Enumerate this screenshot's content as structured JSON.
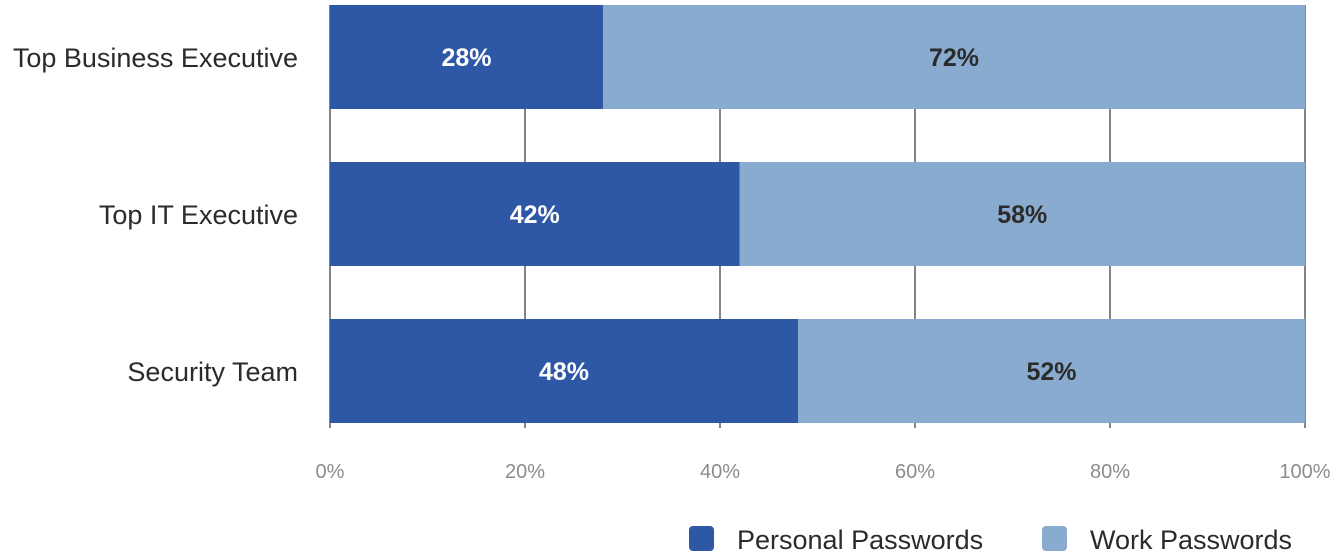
{
  "chart_data": {
    "type": "bar",
    "orientation": "horizontal",
    "stacked": true,
    "categories": [
      "Top Business Executive",
      "Top IT Executive",
      "Security Team"
    ],
    "series": [
      {
        "name": "Personal Passwords",
        "values": [
          28,
          42,
          48
        ],
        "labels": [
          "28%",
          "42%",
          "48%"
        ],
        "color": "#2e58a6",
        "label_color": "#ffffff"
      },
      {
        "name": "Work Passwords",
        "values": [
          72,
          58,
          52
        ],
        "labels": [
          "72%",
          "58%",
          "52%"
        ],
        "color": "#89abcf",
        "label_color": "#2b2b2b"
      }
    ],
    "xlim": [
      0,
      100
    ],
    "xticks": [
      0,
      20,
      40,
      60,
      80,
      100
    ],
    "xtick_labels": [
      "0%",
      "20%",
      "40%",
      "60%",
      "80%",
      "100%"
    ],
    "grid": true,
    "legend_position": "bottom-right",
    "title": "",
    "xlabel": "",
    "ylabel": ""
  }
}
